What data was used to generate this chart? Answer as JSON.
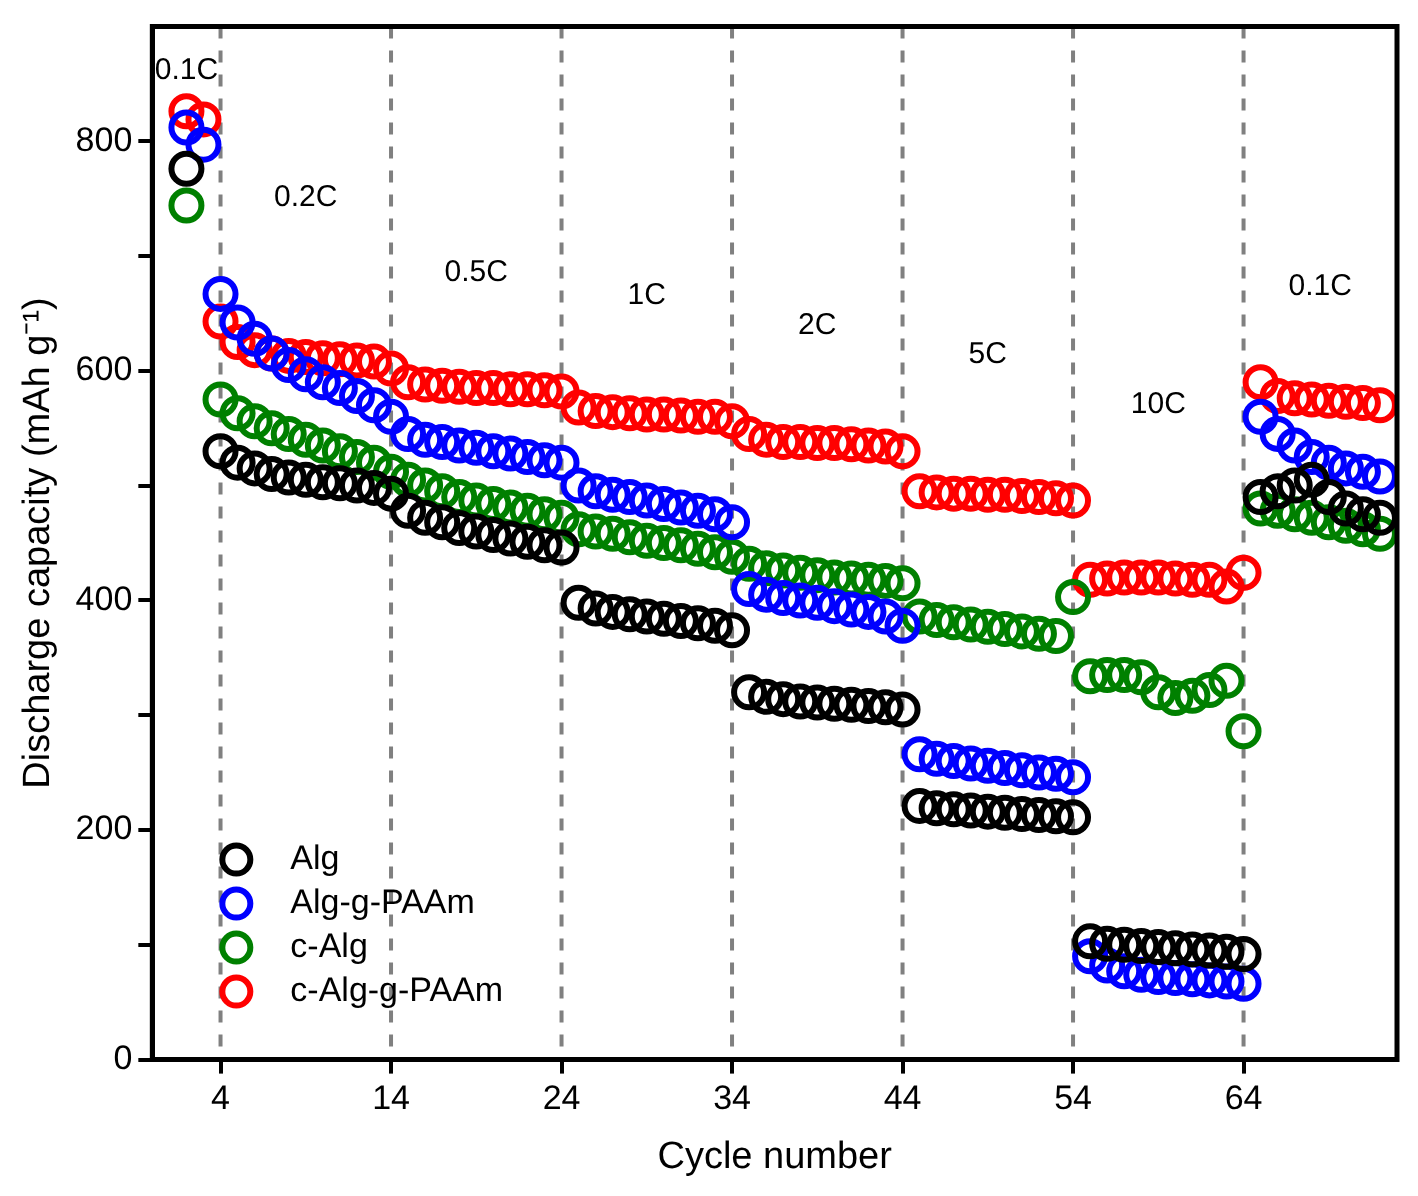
{
  "chart_data": {
    "type": "scatter",
    "xlabel": "Cycle number",
    "ylabel": "Discharge capacity (mAh g⁻¹)",
    "xlim": [
      0,
      73
    ],
    "xticks": [
      4,
      14,
      24,
      34,
      44,
      54,
      64
    ],
    "ylim": [
      0,
      900
    ],
    "yticks": [
      0,
      {
        "value": 100,
        "label": null
      },
      200,
      {
        "value": 300,
        "label": null
      },
      400,
      {
        "value": 500,
        "label": null
      },
      600,
      {
        "value": 700,
        "label": null
      },
      800
    ],
    "grid": false,
    "legend": "bottom left",
    "marker": "circle",
    "x": [
      2,
      3,
      4,
      5,
      6,
      7,
      8,
      9,
      10,
      11,
      12,
      13,
      14,
      15,
      16,
      17,
      18,
      19,
      20,
      21,
      22,
      23,
      24,
      25,
      26,
      27,
      28,
      29,
      30,
      31,
      32,
      33,
      34,
      35,
      36,
      37,
      38,
      39,
      40,
      41,
      42,
      43,
      44,
      45,
      46,
      47,
      48,
      49,
      50,
      51,
      52,
      53,
      54,
      55,
      56,
      57,
      58,
      59,
      60,
      61,
      62,
      63,
      64,
      65,
      66,
      67,
      68,
      69,
      70,
      71,
      72
    ],
    "series": [
      {
        "name": "Alg",
        "color": "#000000",
        "values": [
          776,
          null,
          530,
          520,
          515,
          510,
          507,
          505,
          503,
          502,
          500,
          498,
          493,
          478,
          472,
          468,
          463,
          460,
          457,
          454,
          451,
          448,
          446,
          398,
          393,
          390,
          388,
          386,
          384,
          382,
          380,
          378,
          374,
          320,
          316,
          314,
          312,
          311,
          310,
          309,
          308,
          307,
          305,
          221,
          219,
          218,
          217,
          216,
          215,
          214,
          213,
          212,
          211,
          103,
          101,
          100,
          99,
          98,
          97,
          96,
          95,
          94,
          92,
          490,
          495,
          500,
          505,
          490,
          480,
          475,
          472
        ]
      },
      {
        "name": "Alg-g-PAAm",
        "color": "#0000ff",
        "values": [
          812,
          797,
          667,
          642,
          628,
          615,
          605,
          597,
          590,
          585,
          578,
          570,
          560,
          545,
          540,
          538,
          535,
          533,
          530,
          528,
          525,
          522,
          520,
          500,
          495,
          492,
          490,
          487,
          484,
          481,
          478,
          475,
          468,
          410,
          405,
          402,
          400,
          398,
          395,
          392,
          390,
          386,
          378,
          266,
          262,
          260,
          258,
          256,
          254,
          252,
          250,
          249,
          246,
          90,
          82,
          77,
          74,
          72,
          71,
          70,
          69,
          68,
          66,
          560,
          545,
          535,
          525,
          520,
          515,
          512,
          508
        ]
      },
      {
        "name": "c-Alg",
        "color": "#008000",
        "values": [
          744,
          null,
          575,
          563,
          556,
          550,
          545,
          540,
          535,
          530,
          525,
          520,
          512,
          505,
          500,
          495,
          490,
          487,
          484,
          481,
          478,
          475,
          472,
          462,
          460,
          458,
          455,
          452,
          450,
          448,
          445,
          442,
          438,
          432,
          428,
          426,
          424,
          422,
          420,
          419,
          418,
          417,
          415,
          386,
          383,
          381,
          379,
          377,
          375,
          373,
          371,
          369,
          403,
          334,
          335,
          335,
          333,
          320,
          315,
          317,
          322,
          330,
          286,
          480,
          478,
          475,
          472,
          468,
          465,
          462,
          458
        ]
      },
      {
        "name": "c-Alg-g-PAAm",
        "color": "#ff0000",
        "values": [
          826,
          819,
          643,
          625,
          618,
          615,
          613,
          612,
          611,
          610,
          609,
          608,
          602,
          590,
          588,
          587,
          586,
          585,
          585,
          584,
          584,
          583,
          582,
          568,
          565,
          564,
          563,
          562,
          562,
          561,
          560,
          560,
          556,
          545,
          540,
          538,
          538,
          537,
          537,
          536,
          535,
          534,
          530,
          495,
          494,
          493,
          493,
          492,
          492,
          491,
          490,
          489,
          487,
          418,
          419,
          420,
          420,
          420,
          419,
          418,
          418,
          412,
          424,
          590,
          578,
          576,
          575,
          574,
          573,
          572,
          570
        ]
      }
    ],
    "ref_lines": [
      {
        "axis": "x",
        "value": 4,
        "color": "#808080",
        "line_style": "dashed"
      },
      {
        "axis": "x",
        "value": 14,
        "color": "#808080",
        "line_style": "dashed"
      },
      {
        "axis": "x",
        "value": 24,
        "color": "#808080",
        "line_style": "dashed"
      },
      {
        "axis": "x",
        "value": 34,
        "color": "#808080",
        "line_style": "dashed"
      },
      {
        "axis": "x",
        "value": 44,
        "color": "#808080",
        "line_style": "dashed"
      },
      {
        "axis": "x",
        "value": 54,
        "color": "#808080",
        "line_style": "dashed"
      },
      {
        "axis": "x",
        "value": 64,
        "color": "#808080",
        "line_style": "dashed"
      }
    ],
    "annotations": [
      "0.1C",
      "0.2C",
      "0.5C",
      "1C",
      "2C",
      "5C",
      "10C",
      "0.1C"
    ]
  }
}
